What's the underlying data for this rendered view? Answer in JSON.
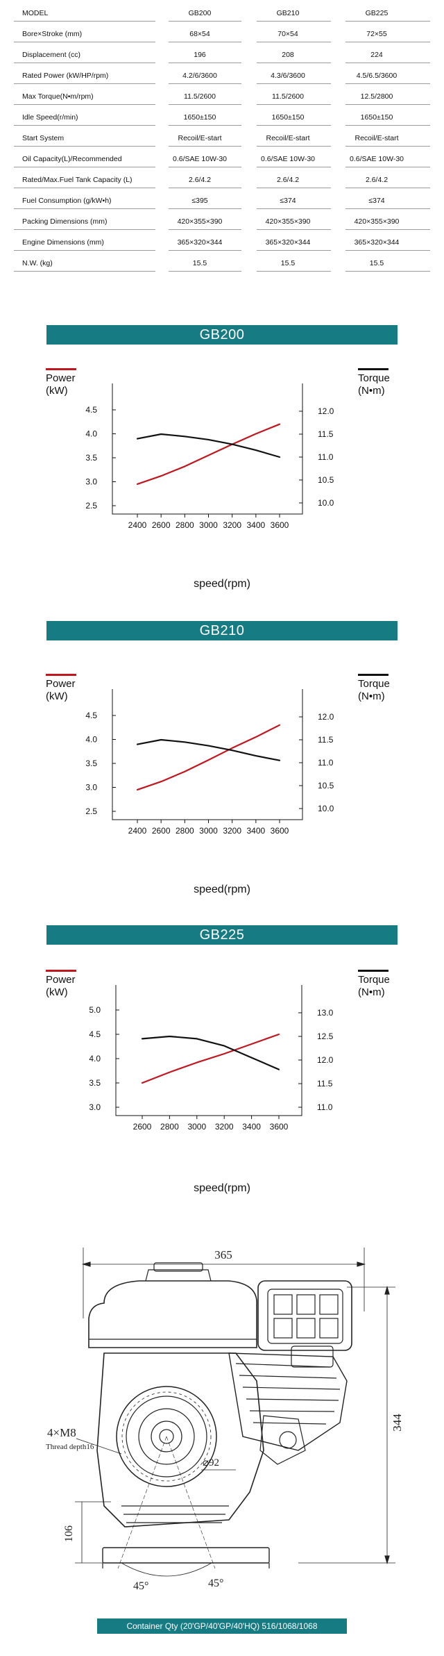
{
  "spec_table": {
    "header": [
      "MODEL",
      "GB200",
      "GB210",
      "GB225"
    ],
    "rows": [
      [
        "Bore×Stroke (mm)",
        "68×54",
        "70×54",
        "72×55"
      ],
      [
        "Displacement (cc)",
        "196",
        "208",
        "224"
      ],
      [
        "Rated Power (kW/HP/rpm)",
        "4.2/6/3600",
        "4.3/6/3600",
        "4.5/6.5/3600"
      ],
      [
        "Max Torque(N•m/rpm)",
        "11.5/2600",
        "11.5/2600",
        "12.5/2800"
      ],
      [
        "Idle Speed(r/min)",
        "1650±150",
        "1650±150",
        "1650±150"
      ],
      [
        "Start System",
        "Recoil/E-start",
        "Recoil/E-start",
        "Recoil/E-start"
      ],
      [
        "Oil Capacity(L)/Recommended",
        "0.6/SAE 10W-30",
        "0.6/SAE 10W-30",
        "0.6/SAE 10W-30"
      ],
      [
        "Rated/Max.Fuel Tank Capacity (L)",
        "2.6/4.2",
        "2.6/4.2",
        "2.6/4.2"
      ],
      [
        "Fuel Consumption (g/kW•h)",
        "≤395",
        "≤374",
        "≤374"
      ],
      [
        "Packing Dimensions (mm)",
        "420×355×390",
        "420×355×390",
        "420×355×390"
      ],
      [
        "Engine Dimensions (mm)",
        "365×320×344",
        "365×320×344",
        "365×320×344"
      ],
      [
        "N.W. (kg)",
        "15.5",
        "15.5",
        "15.5"
      ]
    ]
  },
  "colors": {
    "accent": "#177b84",
    "power": "#c0161d",
    "torque": "#111111"
  },
  "charts": [
    {
      "model": "GB200",
      "left_label": "Power\n(kW)",
      "right_label": "Torque\n(N•m)",
      "xlabel": "speed(rpm)"
    },
    {
      "model": "GB210",
      "left_label": "Power\n(kW)",
      "right_label": "Torque\n(N•m)",
      "xlabel": "speed(rpm)"
    },
    {
      "model": "GB225",
      "left_label": "Power\n(kW)",
      "right_label": "Torque\n(N•m)",
      "xlabel": "speed(rpm)"
    }
  ],
  "chart_data": [
    {
      "type": "line",
      "xticks": [
        2400,
        2600,
        2800,
        3000,
        3200,
        3400,
        3600
      ],
      "xlim": [
        2400,
        3600
      ],
      "ylim_left": [
        2.5,
        4.5
      ],
      "yticks_left": [
        "2.5",
        "3.0",
        "3.5",
        "4.0",
        "4.5"
      ],
      "ylim_right": [
        10.0,
        12.0
      ],
      "yticks_right": [
        "10.0",
        "10.5",
        "11.0",
        "11.5",
        "12.0"
      ],
      "series": [
        {
          "axis": "left",
          "color": "#c0161d",
          "x": [
            2400,
            2600,
            2800,
            3000,
            3200,
            3400,
            3600
          ],
          "y": [
            2.95,
            3.12,
            3.32,
            3.55,
            3.78,
            4.0,
            4.2
          ]
        },
        {
          "axis": "right",
          "color": "#111111",
          "x": [
            2400,
            2600,
            2800,
            3000,
            3200,
            3400,
            3600
          ],
          "y": [
            11.4,
            11.5,
            11.45,
            11.38,
            11.28,
            11.15,
            11.0
          ]
        }
      ]
    },
    {
      "type": "line",
      "xticks": [
        2400,
        2600,
        2800,
        3000,
        3200,
        3400,
        3600
      ],
      "xlim": [
        2400,
        3600
      ],
      "ylim_left": [
        2.5,
        4.5
      ],
      "yticks_left": [
        "2.5",
        "3.0",
        "3.5",
        "4.0",
        "4.5"
      ],
      "ylim_right": [
        10.0,
        12.0
      ],
      "yticks_right": [
        "10.0",
        "10.5",
        "11.0",
        "11.5",
        "12.0"
      ],
      "series": [
        {
          "axis": "left",
          "color": "#c0161d",
          "x": [
            2400,
            2600,
            2800,
            3000,
            3200,
            3400,
            3600
          ],
          "y": [
            2.95,
            3.12,
            3.33,
            3.57,
            3.82,
            4.05,
            4.3
          ]
        },
        {
          "axis": "right",
          "color": "#111111",
          "x": [
            2400,
            2600,
            2800,
            3000,
            3200,
            3400,
            3600
          ],
          "y": [
            11.4,
            11.5,
            11.45,
            11.37,
            11.27,
            11.15,
            11.05
          ]
        }
      ]
    },
    {
      "type": "line",
      "xticks": [
        2600,
        2800,
        3000,
        3200,
        3400,
        3600
      ],
      "xlim": [
        2400,
        3700
      ],
      "ylim_left": [
        3.0,
        5.0
      ],
      "yticks_left": [
        "3.0",
        "3.5",
        "4.0",
        "4.5",
        "5.0"
      ],
      "ylim_right": [
        11.0,
        13.0
      ],
      "yticks_right": [
        "11.0",
        "11.5",
        "12.0",
        "12.5",
        "13.0"
      ],
      "series": [
        {
          "axis": "left",
          "color": "#c0161d",
          "x": [
            2600,
            2800,
            3000,
            3200,
            3400,
            3600
          ],
          "y": [
            3.5,
            3.72,
            3.92,
            4.1,
            4.3,
            4.5
          ]
        },
        {
          "axis": "right",
          "color": "#111111",
          "x": [
            2600,
            2800,
            3000,
            3200,
            3400,
            3600
          ],
          "y": [
            12.45,
            12.5,
            12.45,
            12.3,
            12.05,
            11.8
          ]
        }
      ]
    }
  ],
  "drawing": {
    "dim_width": "365",
    "dim_height": "344",
    "dim_base": "106",
    "bolt": "4×M8",
    "thread": "Thread depth16",
    "shaft_dia": "⌀92",
    "angle_left": "45°",
    "angle_right": "45°"
  },
  "container_text": "Container Qty (20'GP/40'GP/40'HQ) 516/1068/1068"
}
